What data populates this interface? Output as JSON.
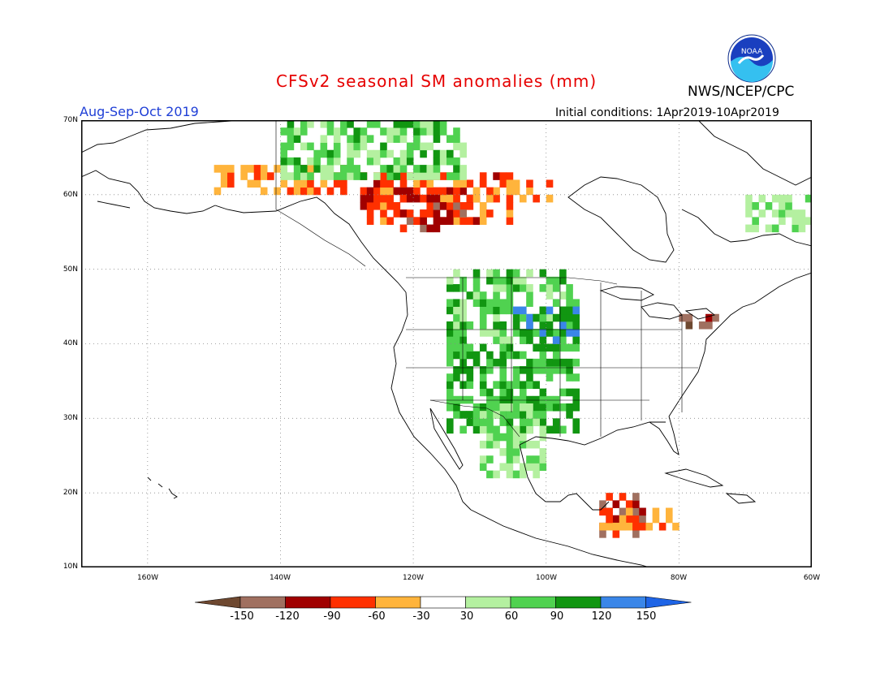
{
  "header": {
    "title": "CFSv2 seasonal SM anomalies (mm)",
    "agency": "NWS/NCEP/CPC",
    "season": "Aug-Sep-Oct 2019",
    "initial_conditions": "Initial conditions: 1Apr2019-10Apr2019",
    "logo_text": "NOAA"
  },
  "axes": {
    "lat_labels": [
      "70N",
      "60N",
      "50N",
      "40N",
      "30N",
      "20N",
      "10N"
    ],
    "lon_labels": [
      "160W",
      "140W",
      "120W",
      "100W",
      "80W",
      "60W"
    ],
    "lon_range": [
      -170,
      -60
    ],
    "lat_range": [
      10,
      70
    ]
  },
  "colorbar": {
    "ticks": [
      "-150",
      "-120",
      "-90",
      "-60",
      "-30",
      "30",
      "60",
      "90",
      "120",
      "150"
    ],
    "colors": [
      "#6e4830",
      "#a07060",
      "#a00000",
      "#ff3000",
      "#ffb43c",
      "#ffffff",
      "#b4f0a0",
      "#50d250",
      "#119611",
      "#3a86e8",
      "#1e64e6"
    ],
    "units": "mm"
  },
  "chart_data": {
    "type": "heatmap",
    "title": "CFSv2 seasonal SM anomalies (mm)",
    "subtitle": "Aug-Sep-Oct 2019",
    "xlabel": "",
    "ylabel": "",
    "xlim": [
      -170,
      -60
    ],
    "ylim": [
      10,
      70
    ],
    "bins": [
      -150,
      -120,
      -90,
      -60,
      -30,
      30,
      60,
      90,
      120,
      150
    ],
    "regions": [
      {
        "lon": [
          -150,
          -130
        ],
        "lat": [
          60,
          64
        ],
        "anomaly": -45
      },
      {
        "lon": [
          -128,
          -105
        ],
        "lat": [
          56,
          63
        ],
        "anomaly": -75
      },
      {
        "lon": [
          -122,
          -112
        ],
        "lat": [
          55,
          60
        ],
        "anomaly": -100
      },
      {
        "lon": [
          -115,
          -98
        ],
        "lat": [
          59,
          62
        ],
        "anomaly": -50
      },
      {
        "lon": [
          -140,
          -112
        ],
        "lat": [
          62,
          70
        ],
        "anomaly": 70
      },
      {
        "lon": [
          -115,
          -95
        ],
        "lat": [
          40,
          50
        ],
        "anomaly": 75
      },
      {
        "lon": [
          -115,
          -95
        ],
        "lat": [
          28,
          40
        ],
        "anomaly": 90
      },
      {
        "lon": [
          -110,
          -100
        ],
        "lat": [
          22,
          32
        ],
        "anomaly": 60
      },
      {
        "lon": [
          -105,
          -95
        ],
        "lat": [
          40,
          45
        ],
        "anomaly": 110
      },
      {
        "lon": [
          -92,
          -85
        ],
        "lat": [
          14,
          20
        ],
        "anomaly": -100
      },
      {
        "lon": [
          -92,
          -80
        ],
        "lat": [
          15,
          18
        ],
        "anomaly": -45
      },
      {
        "lon": [
          -80,
          -74
        ],
        "lat": [
          42,
          44
        ],
        "anomaly": -140
      },
      {
        "lon": [
          -70,
          -60
        ],
        "lat": [
          55,
          60
        ],
        "anomaly": 50
      }
    ]
  }
}
